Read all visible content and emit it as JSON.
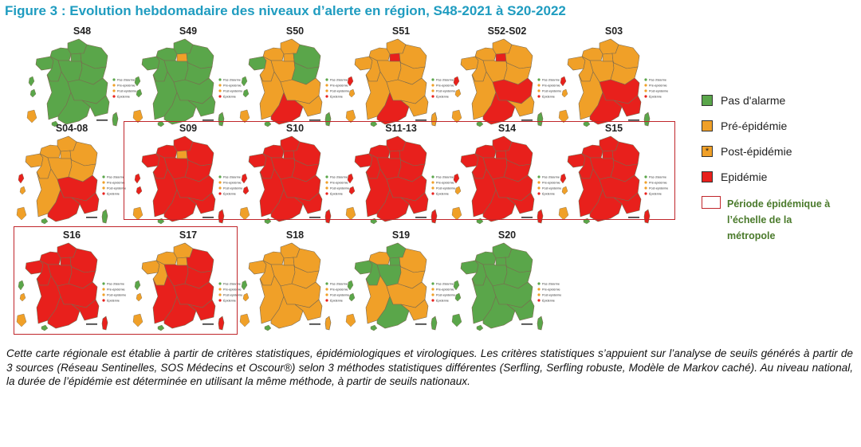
{
  "figure": {
    "title": "Figure 3 : Evolution hebdomadaire des niveaux d’alerte en région, S48-2021 à S20-2022"
  },
  "colors": {
    "green": "#5aa64a",
    "orange": "#f0a028",
    "red": "#e8201c",
    "frame": "#c0262b"
  },
  "mini_legend": {
    "labels": [
      "Pas d'alarme",
      "Pré-épidémie",
      "Post-épidémie",
      "Épidémie"
    ]
  },
  "maps": [
    {
      "week": "S48",
      "regions": {
        "hdf": "green",
        "idf": "green",
        "ge": "green",
        "bre": "green",
        "nor": "green",
        "pdl": "green",
        "cvl": "green",
        "bfc": "green",
        "na": "green",
        "ara": "green",
        "occ": "green",
        "paca": "green",
        "cor": "green"
      },
      "overseas": [
        "green",
        "green",
        "orange",
        "green"
      ]
    },
    {
      "week": "S49",
      "regions": {
        "hdf": "green",
        "idf": "orange",
        "ge": "green",
        "bre": "green",
        "nor": "green",
        "pdl": "green",
        "cvl": "green",
        "bfc": "green",
        "na": "green",
        "ara": "green",
        "occ": "green",
        "paca": "green",
        "cor": "green"
      },
      "overseas": [
        "green",
        "green",
        "orange",
        "green"
      ]
    },
    {
      "week": "S50",
      "regions": {
        "hdf": "orange",
        "idf": "orange",
        "ge": "green",
        "bre": "green",
        "nor": "orange",
        "pdl": "orange",
        "cvl": "orange",
        "bfc": "green",
        "na": "orange",
        "ara": "orange",
        "occ": "red",
        "paca": "orange",
        "cor": "green"
      },
      "overseas": [
        "green",
        "green",
        "orange",
        "green"
      ]
    },
    {
      "week": "S51",
      "regions": {
        "hdf": "orange",
        "idf": "red",
        "ge": "orange",
        "bre": "orange",
        "nor": "orange",
        "pdl": "orange",
        "cvl": "orange",
        "bfc": "orange",
        "na": "orange",
        "ara": "orange",
        "occ": "red",
        "paca": "orange",
        "cor": "orange"
      },
      "overseas": [
        "red",
        "orange",
        "orange",
        "green"
      ]
    },
    {
      "week": "S52-S02",
      "regions": {
        "hdf": "orange",
        "idf": "red",
        "ge": "orange",
        "bre": "orange",
        "nor": "orange",
        "pdl": "orange",
        "cvl": "orange",
        "bfc": "orange",
        "na": "orange",
        "ara": "red",
        "occ": "red",
        "paca": "orange",
        "cor": "green"
      },
      "overseas": [
        "red",
        "orange",
        "orange",
        "green"
      ]
    },
    {
      "week": "S03",
      "regions": {
        "hdf": "orange",
        "idf": "orange",
        "ge": "orange",
        "bre": "orange",
        "nor": "orange",
        "pdl": "orange",
        "cvl": "orange",
        "bfc": "orange",
        "na": "orange",
        "ara": "red",
        "occ": "red",
        "paca": "red",
        "cor": "green"
      },
      "overseas": [
        "red",
        "orange",
        "orange",
        "green"
      ]
    },
    {
      "week": "S04-08",
      "regions": {
        "hdf": "orange",
        "idf": "orange",
        "ge": "orange",
        "bre": "orange",
        "nor": "orange",
        "pdl": "orange",
        "cvl": "orange",
        "bfc": "orange",
        "na": "orange",
        "ara": "red",
        "occ": "red",
        "paca": "red",
        "cor": "green"
      },
      "overseas": [
        "red",
        "orange",
        "orange",
        "green"
      ]
    },
    {
      "week": "S09",
      "regions": {
        "hdf": "red",
        "idf": "orange",
        "ge": "red",
        "bre": "red",
        "nor": "red",
        "pdl": "red",
        "cvl": "red",
        "bfc": "red",
        "na": "red",
        "ara": "red",
        "occ": "red",
        "paca": "red",
        "cor": "red"
      },
      "overseas": [
        "red",
        "red",
        "orange",
        "green"
      ]
    },
    {
      "week": "S10",
      "regions": {
        "hdf": "red",
        "idf": "red",
        "ge": "red",
        "bre": "red",
        "nor": "red",
        "pdl": "red",
        "cvl": "red",
        "bfc": "red",
        "na": "red",
        "ara": "red",
        "occ": "red",
        "paca": "red",
        "cor": "red"
      },
      "overseas": [
        "red",
        "red",
        "orange",
        "green"
      ]
    },
    {
      "week": "S11-13",
      "regions": {
        "hdf": "red",
        "idf": "red",
        "ge": "red",
        "bre": "red",
        "nor": "red",
        "pdl": "red",
        "cvl": "red",
        "bfc": "red",
        "na": "red",
        "ara": "red",
        "occ": "red",
        "paca": "red",
        "cor": "red"
      },
      "overseas": [
        "red",
        "red",
        "orange",
        "green"
      ]
    },
    {
      "week": "S14",
      "regions": {
        "hdf": "red",
        "idf": "red",
        "ge": "red",
        "bre": "red",
        "nor": "red",
        "pdl": "red",
        "cvl": "red",
        "bfc": "red",
        "na": "red",
        "ara": "red",
        "occ": "red",
        "paca": "red",
        "cor": "red"
      },
      "overseas": [
        "red",
        "orange",
        "orange",
        "green"
      ]
    },
    {
      "week": "S15",
      "regions": {
        "hdf": "red",
        "idf": "red",
        "ge": "red",
        "bre": "red",
        "nor": "red",
        "pdl": "red",
        "cvl": "red",
        "bfc": "red",
        "na": "red",
        "ara": "red",
        "occ": "red",
        "paca": "red",
        "cor": "red"
      },
      "overseas": [
        "red",
        "orange",
        "orange",
        "green"
      ]
    },
    {
      "week": "S16",
      "regions": {
        "hdf": "red",
        "idf": "red",
        "ge": "red",
        "bre": "red",
        "nor": "red",
        "pdl": "red",
        "cvl": "red",
        "bfc": "red",
        "na": "red",
        "ara": "red",
        "occ": "red",
        "paca": "red",
        "cor": "red"
      },
      "overseas": [
        "green",
        "orange",
        "orange",
        "green"
      ]
    },
    {
      "week": "S17",
      "regions": {
        "hdf": "orange",
        "idf": "orange",
        "ge": "red",
        "bre": "orange",
        "nor": "orange",
        "pdl": "orange",
        "cvl": "red",
        "bfc": "red",
        "na": "red",
        "ara": "red",
        "occ": "red",
        "paca": "red",
        "cor": "red"
      },
      "overseas": [
        "green",
        "orange",
        "orange",
        "green"
      ]
    },
    {
      "week": "S18",
      "regions": {
        "hdf": "orange",
        "idf": "orange",
        "ge": "orange",
        "bre": "orange",
        "nor": "orange",
        "pdl": "orange",
        "cvl": "orange",
        "bfc": "orange",
        "na": "orange",
        "ara": "orange",
        "occ": "orange",
        "paca": "orange",
        "cor": "orange"
      },
      "overseas": [
        "green",
        "orange",
        "orange",
        "green"
      ]
    },
    {
      "week": "S19",
      "regions": {
        "hdf": "green",
        "idf": "green",
        "ge": "orange",
        "bre": "green",
        "nor": "orange",
        "pdl": "green",
        "cvl": "green",
        "bfc": "orange",
        "na": "orange",
        "ara": "orange",
        "occ": "green",
        "paca": "orange",
        "cor": "green"
      },
      "overseas": [
        "green",
        "green",
        "orange",
        "green"
      ]
    },
    {
      "week": "S20",
      "regions": {
        "hdf": "green",
        "idf": "green",
        "ge": "green",
        "bre": "green",
        "nor": "green",
        "pdl": "green",
        "cvl": "green",
        "bfc": "green",
        "na": "green",
        "ara": "green",
        "occ": "green",
        "paca": "green",
        "cor": "green"
      },
      "overseas": [
        "green",
        "green",
        "green",
        "green"
      ]
    }
  ],
  "legend": {
    "items": [
      {
        "label": "Pas d'alarme",
        "color": "green",
        "marker": ""
      },
      {
        "label": "Pré-épidémie",
        "color": "orange",
        "marker": ""
      },
      {
        "label": "Post-épidémie",
        "color": "orange",
        "marker": "*"
      },
      {
        "label": "Epidémie",
        "color": "red",
        "marker": ""
      }
    ],
    "epidemic_period_label": "Période épidémique à l’échelle de la métropole"
  },
  "caption": "Cette carte régionale est établie à partir de critères statistiques, épidémiologiques et virologiques. Les critères statistiques s’appuient sur l’analyse de seuils générés à partir de 3 sources (Réseau Sentinelles, SOS Médecins et Oscour®) selon 3 méthodes statistiques différentes (Serfling, Serfling robuste, Modèle de Markov caché). Au niveau national, la durée de l’épidémie est déterminée en utilisant la même méthode, à partir de seuils nationaux."
}
